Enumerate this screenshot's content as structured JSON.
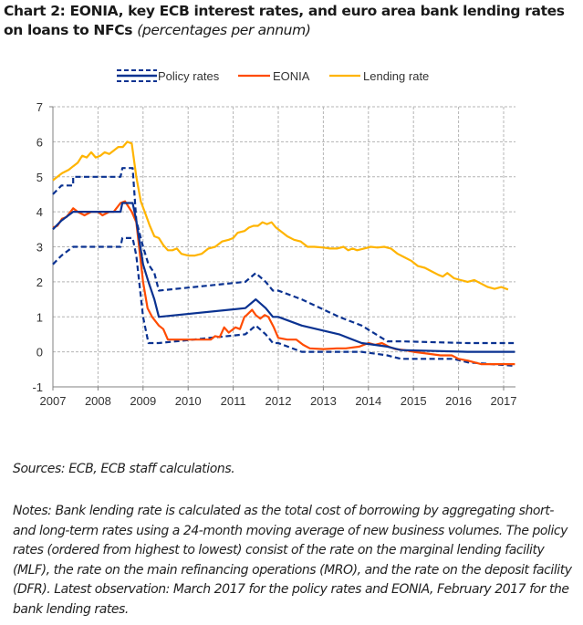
{
  "header": {
    "title": "Chart 2: EONIA, key ECB interest rates, and euro area bank lending rates on loans to NFCs",
    "subtitle": "(percentages per annum)"
  },
  "footer": {
    "sources": "Sources: ECB, ECB staff calculations.",
    "notes": "Notes: Bank lending rate is calculated as the total cost of borrowing by aggregating short- and long-term rates using a 24-month moving average of new business volumes. The policy rates (ordered from highest to lowest) consist of the rate on the marginal lending facility (MLF), the rate on the main refinancing operations (MRO), and the rate on the deposit facility (DFR). Latest observation: March 2017 for the policy rates and EONIA, February 2017 for the bank lending rates."
  },
  "colors": {
    "policy": "#0a3291",
    "eonia": "#ff4b00",
    "lending": "#ffb400",
    "grid": "#b4b4b4",
    "axis": "#808080"
  },
  "chart_data": {
    "type": "line",
    "title": "EONIA, key ECB interest rates, and euro area bank lending rates on loans to NFCs",
    "xlabel": "",
    "ylabel": "percentages per annum",
    "xlim": [
      2007,
      2017.25
    ],
    "ylim": [
      -1,
      7
    ],
    "x_ticks": [
      "2007",
      "2008",
      "2009",
      "2010",
      "2011",
      "2012",
      "2013",
      "2014",
      "2015",
      "2016",
      "2017"
    ],
    "y_ticks": [
      "-1",
      "0",
      "1",
      "2",
      "3",
      "4",
      "5",
      "6",
      "7"
    ],
    "grid": true,
    "legend_position": "top-center",
    "legend": [
      {
        "name": "Policy rates",
        "style": "dashed-solid-dashed"
      },
      {
        "name": "EONIA",
        "style": "solid"
      },
      {
        "name": "Lending rate",
        "style": "solid"
      }
    ],
    "series": [
      {
        "name": "MLF",
        "group": "Policy rates",
        "style": "dashed",
        "x": [
          2007.0,
          2007.19,
          2007.45,
          2007.45,
          2008.5,
          2008.54,
          2008.77,
          2008.85,
          2009.0,
          2009.12,
          2009.25,
          2009.35,
          2011.27,
          2011.5,
          2011.72,
          2011.88,
          2012.0,
          2012.52,
          2013.35,
          2013.85,
          2014.42,
          2014.72,
          2016.2,
          2017.25
        ],
        "y": [
          4.5,
          4.75,
          4.75,
          5.0,
          5.0,
          5.25,
          5.25,
          3.75,
          3.0,
          2.5,
          2.25,
          1.75,
          2.0,
          2.25,
          2.0,
          1.75,
          1.75,
          1.5,
          1.0,
          0.75,
          0.3,
          0.3,
          0.25,
          0.25
        ]
      },
      {
        "name": "MRO",
        "group": "Policy rates",
        "style": "solid",
        "x": [
          2007.0,
          2007.19,
          2007.45,
          2008.5,
          2008.54,
          2008.77,
          2008.85,
          2009.0,
          2009.12,
          2009.25,
          2009.35,
          2011.27,
          2011.5,
          2011.72,
          2011.88,
          2012.0,
          2012.52,
          2013.35,
          2013.85,
          2014.42,
          2014.72,
          2016.2,
          2017.25
        ],
        "y": [
          3.5,
          3.75,
          4.0,
          4.0,
          4.25,
          4.25,
          3.75,
          2.5,
          2.0,
          1.5,
          1.0,
          1.25,
          1.5,
          1.25,
          1.0,
          1.0,
          0.75,
          0.5,
          0.25,
          0.15,
          0.05,
          0.0,
          0.0
        ]
      },
      {
        "name": "DFR",
        "group": "Policy rates",
        "style": "dashed",
        "x": [
          2007.0,
          2007.19,
          2007.45,
          2008.5,
          2008.54,
          2008.77,
          2008.85,
          2009.0,
          2009.12,
          2009.25,
          2009.35,
          2011.27,
          2011.5,
          2011.72,
          2011.88,
          2012.0,
          2012.52,
          2013.85,
          2014.42,
          2014.72,
          2015.88,
          2016.2,
          2017.25
        ],
        "y": [
          2.5,
          2.75,
          3.0,
          3.0,
          3.25,
          3.25,
          2.75,
          1.0,
          0.25,
          0.25,
          0.25,
          0.5,
          0.75,
          0.5,
          0.25,
          0.25,
          0.0,
          0.0,
          -0.1,
          -0.2,
          -0.2,
          -0.3,
          -0.4
        ]
      },
      {
        "name": "EONIA",
        "style": "solid",
        "x": [
          2007.0,
          2007.1,
          2007.2,
          2007.3,
          2007.45,
          2007.55,
          2007.7,
          2007.85,
          2008.0,
          2008.1,
          2008.25,
          2008.35,
          2008.5,
          2008.6,
          2008.75,
          2008.85,
          2009.0,
          2009.1,
          2009.2,
          2009.35,
          2009.45,
          2009.55,
          2009.8,
          2010.2,
          2010.5,
          2010.6,
          2010.7,
          2010.8,
          2010.9,
          2011.0,
          2011.05,
          2011.15,
          2011.25,
          2011.3,
          2011.42,
          2011.5,
          2011.6,
          2011.7,
          2011.78,
          2011.9,
          2012.0,
          2012.2,
          2012.4,
          2012.55,
          2012.7,
          2013.0,
          2013.3,
          2013.5,
          2013.8,
          2014.0,
          2014.15,
          2014.3,
          2014.45,
          2014.6,
          2014.8,
          2015.0,
          2015.3,
          2015.6,
          2015.85,
          2016.0,
          2016.2,
          2016.5,
          2016.8,
          2017.0,
          2017.25
        ],
        "y": [
          3.55,
          3.6,
          3.8,
          3.85,
          4.1,
          4.0,
          3.9,
          4.0,
          4.0,
          3.9,
          4.0,
          4.0,
          4.25,
          4.3,
          4.0,
          3.7,
          2.0,
          1.25,
          1.0,
          0.75,
          0.65,
          0.35,
          0.35,
          0.35,
          0.35,
          0.45,
          0.42,
          0.7,
          0.55,
          0.65,
          0.7,
          0.65,
          1.0,
          1.05,
          1.2,
          1.05,
          0.95,
          1.05,
          1.0,
          0.7,
          0.4,
          0.35,
          0.35,
          0.2,
          0.1,
          0.08,
          0.1,
          0.1,
          0.15,
          0.25,
          0.2,
          0.25,
          0.15,
          0.08,
          0.05,
          0.0,
          -0.05,
          -0.1,
          -0.1,
          -0.2,
          -0.25,
          -0.35,
          -0.35,
          -0.35,
          -0.35
        ]
      },
      {
        "name": "Lending rate",
        "style": "solid",
        "x": [
          2007.0,
          2007.1,
          2007.2,
          2007.35,
          2007.45,
          2007.55,
          2007.65,
          2007.75,
          2007.85,
          2007.95,
          2008.05,
          2008.15,
          2008.25,
          2008.35,
          2008.45,
          2008.55,
          2008.65,
          2008.75,
          2008.85,
          2008.95,
          2009.05,
          2009.15,
          2009.25,
          2009.35,
          2009.45,
          2009.55,
          2009.65,
          2009.75,
          2009.85,
          2010.0,
          2010.15,
          2010.3,
          2010.45,
          2010.6,
          2010.75,
          2010.9,
          2011.0,
          2011.1,
          2011.25,
          2011.35,
          2011.45,
          2011.55,
          2011.65,
          2011.75,
          2011.85,
          2011.95,
          2012.05,
          2012.2,
          2012.35,
          2012.5,
          2012.65,
          2012.8,
          2013.0,
          2013.15,
          2013.3,
          2013.45,
          2013.55,
          2013.65,
          2013.75,
          2013.9,
          2014.05,
          2014.2,
          2014.35,
          2014.5,
          2014.65,
          2014.8,
          2014.95,
          2015.1,
          2015.25,
          2015.4,
          2015.55,
          2015.65,
          2015.75,
          2015.9,
          2016.05,
          2016.2,
          2016.35,
          2016.5,
          2016.65,
          2016.8,
          2016.95,
          2017.1
        ],
        "y": [
          4.9,
          5.0,
          5.1,
          5.2,
          5.3,
          5.4,
          5.6,
          5.55,
          5.7,
          5.55,
          5.6,
          5.7,
          5.65,
          5.75,
          5.85,
          5.85,
          6.0,
          5.95,
          5.0,
          4.3,
          3.95,
          3.6,
          3.3,
          3.25,
          3.05,
          2.9,
          2.9,
          2.95,
          2.8,
          2.75,
          2.75,
          2.8,
          2.95,
          3.0,
          3.15,
          3.2,
          3.25,
          3.4,
          3.45,
          3.55,
          3.6,
          3.6,
          3.7,
          3.65,
          3.7,
          3.55,
          3.45,
          3.3,
          3.2,
          3.15,
          3.0,
          3.0,
          2.98,
          2.95,
          2.95,
          3.0,
          2.9,
          2.95,
          2.9,
          2.95,
          3.0,
          2.98,
          3.0,
          2.95,
          2.8,
          2.7,
          2.6,
          2.45,
          2.4,
          2.3,
          2.2,
          2.15,
          2.25,
          2.1,
          2.05,
          2.0,
          2.05,
          1.95,
          1.85,
          1.8,
          1.85,
          1.78
        ]
      }
    ]
  }
}
